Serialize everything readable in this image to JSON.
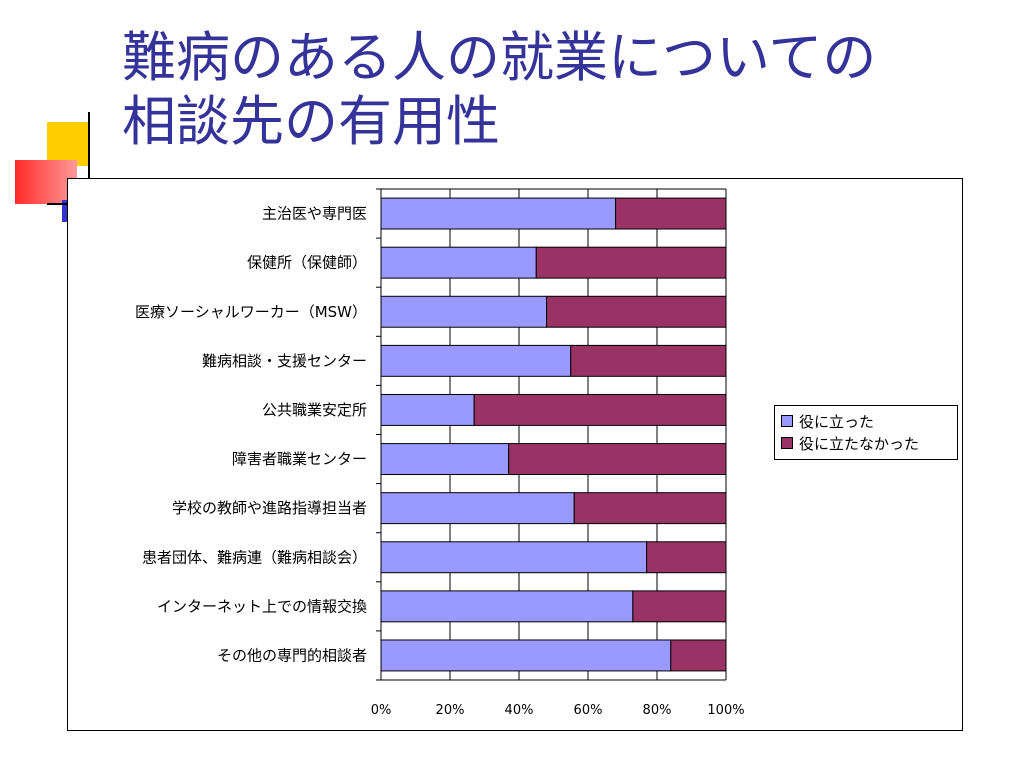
{
  "slide": {
    "title_line1": "難病のある人の就業についての",
    "title_line2": "相談先の有用性"
  },
  "colors": {
    "title": "#333399",
    "useful": "#9999ff",
    "not_useful": "#993366",
    "deco_yellow": "#ffcc00",
    "deco_red": "#ff3333",
    "deco_blue": "#3333cc"
  },
  "chart_data": {
    "type": "bar",
    "orientation": "horizontal",
    "stacked": "percent",
    "categories": [
      "主治医や専門医",
      "保健所（保健師）",
      "医療ソーシャルワーカー（MSW）",
      "難病相談・支援センター",
      "公共職業安定所",
      "障害者職業センター",
      "学校の教師や進路指導担当者",
      "患者団体、難病連（難病相談会）",
      "インターネット上での情報交換",
      "その他の専門的相談者"
    ],
    "series": [
      {
        "name": "役に立った",
        "values": [
          68,
          45,
          48,
          55,
          27,
          37,
          56,
          77,
          73,
          84
        ]
      },
      {
        "name": "役に立たなかった",
        "values": [
          32,
          55,
          52,
          45,
          73,
          63,
          44,
          23,
          27,
          16
        ]
      }
    ],
    "xtick_labels": [
      "0%",
      "20%",
      "40%",
      "60%",
      "80%",
      "100%"
    ],
    "xlim": [
      0,
      100
    ],
    "grid": true,
    "legend_position": "right"
  }
}
